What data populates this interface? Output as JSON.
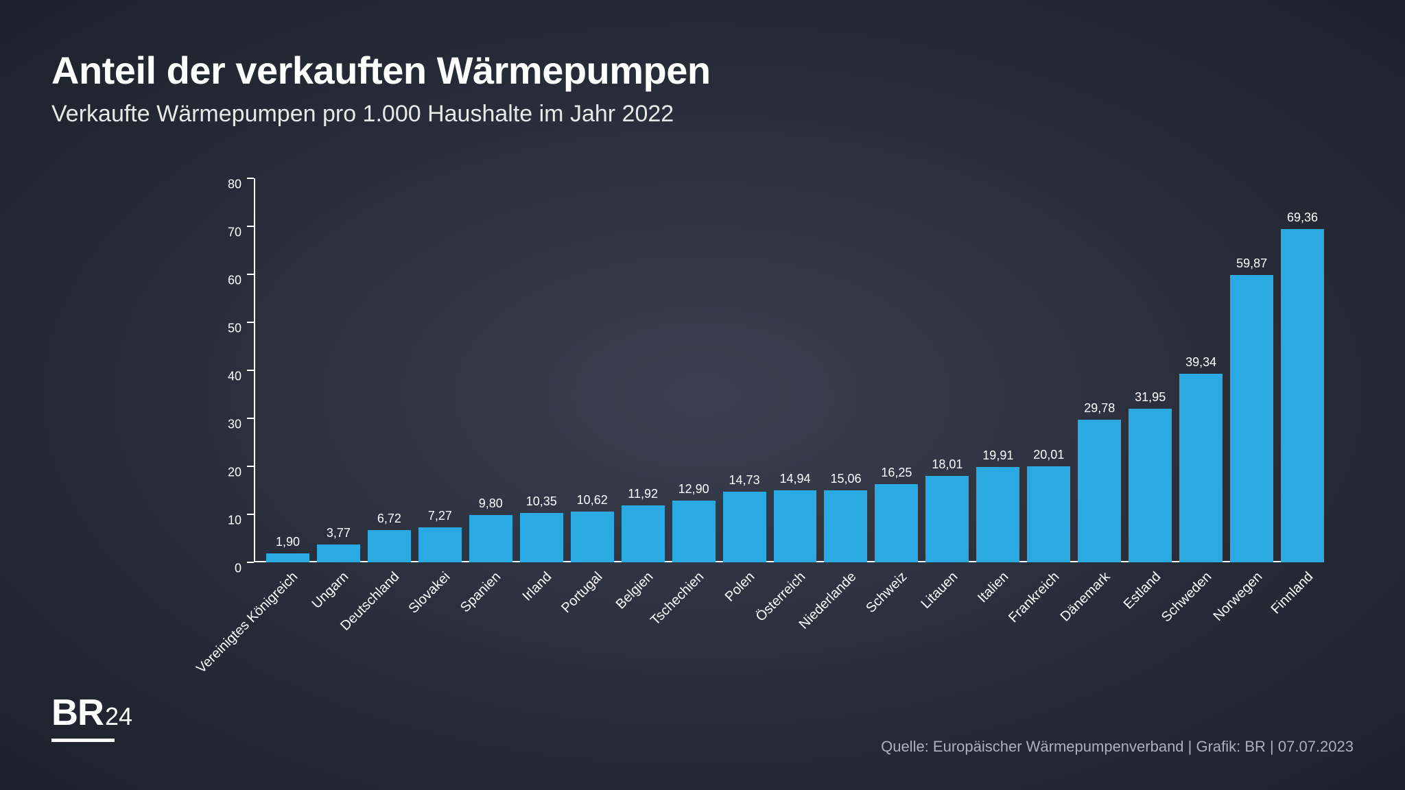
{
  "header": {
    "title": "Anteil der verkauften Wärmepumpen",
    "subtitle": "Verkaufte Wärmepumpen pro 1.000 Haushalte im Jahr 2022"
  },
  "chart": {
    "type": "bar",
    "ylim_max": 80,
    "yticks": [
      0,
      10,
      20,
      30,
      40,
      50,
      60,
      70,
      80
    ],
    "bar_color": "#29abe2",
    "axis_color": "#ffffff",
    "text_color": "#ffffff",
    "label_fontsize": 18,
    "value_fontsize": 18,
    "category_fontsize": 20,
    "category_rotation": -45,
    "data": [
      {
        "category": "Vereinigtes Königreich",
        "value": 1.9,
        "label": "1,90"
      },
      {
        "category": "Ungarn",
        "value": 3.77,
        "label": "3,77"
      },
      {
        "category": "Deutschland",
        "value": 6.72,
        "label": "6,72"
      },
      {
        "category": "Slovakei",
        "value": 7.27,
        "label": "7,27"
      },
      {
        "category": "Spanien",
        "value": 9.8,
        "label": "9,80"
      },
      {
        "category": "Irland",
        "value": 10.35,
        "label": "10,35"
      },
      {
        "category": "Portugal",
        "value": 10.62,
        "label": "10,62"
      },
      {
        "category": "Belgien",
        "value": 11.92,
        "label": "11,92"
      },
      {
        "category": "Tschechien",
        "value": 12.9,
        "label": "12,90"
      },
      {
        "category": "Polen",
        "value": 14.73,
        "label": "14,73"
      },
      {
        "category": "Österreich",
        "value": 14.94,
        "label": "14,94"
      },
      {
        "category": "Niederlande",
        "value": 15.06,
        "label": "15,06"
      },
      {
        "category": "Schweiz",
        "value": 16.25,
        "label": "16,25"
      },
      {
        "category": "Litauen",
        "value": 18.01,
        "label": "18,01"
      },
      {
        "category": "Italien",
        "value": 19.91,
        "label": "19,91"
      },
      {
        "category": "Frankreich",
        "value": 20.01,
        "label": "20,01"
      },
      {
        "category": "Dänemark",
        "value": 29.78,
        "label": "29,78"
      },
      {
        "category": "Estland",
        "value": 31.95,
        "label": "31,95"
      },
      {
        "category": "Schweden",
        "value": 39.34,
        "label": "39,34"
      },
      {
        "category": "Norwegen",
        "value": 59.87,
        "label": "59,87"
      },
      {
        "category": "Finnland",
        "value": 69.36,
        "label": "69,36"
      }
    ]
  },
  "logo": {
    "prefix": "BR",
    "suffix": "24"
  },
  "source": "Quelle: Europäischer Wärmepumpenverband | Grafik: BR | 07.07.2023"
}
